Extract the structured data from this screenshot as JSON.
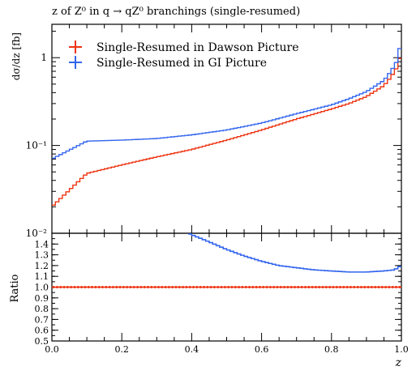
{
  "title": "z of Z⁰ in q → qZ⁰ branchings (single-resumed)",
  "colors": {
    "dawson": "#ee3311",
    "gi": "#3366ee",
    "text": "#000000"
  },
  "legend": {
    "placement": "top-left",
    "entries": [
      {
        "label": "Single-Resumed in Dawson Picture",
        "color": "#ee3311"
      },
      {
        "label": "Single-Resumed in GI Picture",
        "color": "#3366ee"
      }
    ]
  },
  "chart_data": [
    {
      "type": "line",
      "panel": "main",
      "ylabel": "dσ/dz [fb]",
      "xlabel": "",
      "yscale": "log",
      "ylim": [
        0.01,
        2.4
      ],
      "xlim": [
        0.0,
        1.0
      ],
      "y_tick_labels": [
        "10⁻²",
        "10⁻¹",
        "1"
      ],
      "y_ticks": [
        0.01,
        0.1,
        1
      ],
      "x": [
        0.0,
        0.1,
        0.2,
        0.3,
        0.4,
        0.5,
        0.6,
        0.7,
        0.8,
        0.85,
        0.9,
        0.95,
        0.97,
        0.99,
        1.0
      ],
      "series": [
        {
          "name": "Single-Resumed in Dawson Picture",
          "values": [
            0.02,
            0.048,
            0.06,
            0.074,
            0.09,
            0.115,
            0.15,
            0.2,
            0.26,
            0.3,
            0.36,
            0.48,
            0.6,
            0.8,
            1.2
          ]
        },
        {
          "name": "Single-Resumed in GI Picture",
          "values": [
            0.07,
            0.112,
            0.115,
            0.12,
            0.132,
            0.15,
            0.18,
            0.23,
            0.29,
            0.34,
            0.41,
            0.55,
            0.7,
            0.95,
            1.7
          ]
        }
      ]
    },
    {
      "type": "line",
      "panel": "ratio",
      "ylabel": "Ratio",
      "xlabel": "z",
      "ylim": [
        0.5,
        1.5
      ],
      "xlim": [
        0.0,
        1.0
      ],
      "x_tick_labels": [
        "0.0",
        "0.2",
        "0.4",
        "0.6",
        "0.8",
        "1.0"
      ],
      "y_tick_labels": [
        "0.5",
        "0.6",
        "0.7",
        "0.8",
        "0.9",
        "1.0",
        "1.1",
        "1.2",
        "1.3",
        "1.4"
      ],
      "x": [
        0.39,
        0.45,
        0.5,
        0.55,
        0.6,
        0.65,
        0.7,
        0.75,
        0.8,
        0.85,
        0.9,
        0.95,
        0.98,
        1.0
      ],
      "series": [
        {
          "name": "Single-Resumed in Dawson Picture",
          "values": [
            1.0,
            1.0,
            1.0,
            1.0,
            1.0,
            1.0,
            1.0,
            1.0,
            1.0,
            1.0,
            1.0,
            1.0,
            1.0,
            1.0
          ]
        },
        {
          "name": "Single-Resumed in GI Picture",
          "values": [
            1.5,
            1.42,
            1.35,
            1.29,
            1.24,
            1.2,
            1.18,
            1.16,
            1.15,
            1.14,
            1.14,
            1.15,
            1.16,
            1.2
          ]
        }
      ]
    }
  ]
}
